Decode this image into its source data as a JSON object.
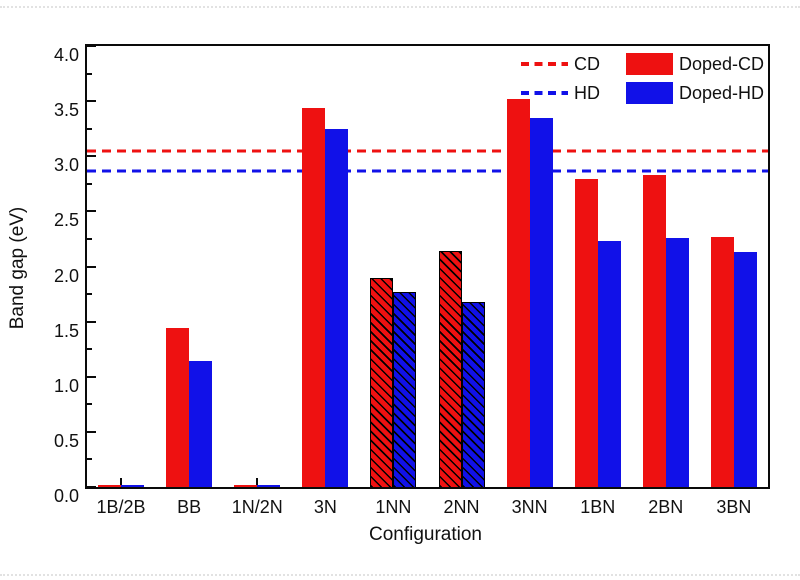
{
  "figure": {
    "y_axis_label": "Band gap (eV)",
    "x_axis_label": "Configuration"
  },
  "legend": {
    "cd_label": "CD",
    "hd_label": "HD",
    "doped_cd_label": "Doped-CD",
    "doped_hd_label": "Doped-HD"
  },
  "colors": {
    "cd_red": "#ee1111",
    "hd_blue": "#1111e8",
    "hatch": "#000000",
    "axis": "#0a0a0a"
  },
  "chart_data": {
    "type": "bar",
    "title": "",
    "xlabel": "Configuration",
    "ylabel": "Band gap (eV)",
    "ylim": [
      0.0,
      4.0
    ],
    "ytick_step": 0.5,
    "yminor_step": 0.25,
    "ytick_labels": [
      "0.0",
      "0.5",
      "1.0",
      "1.5",
      "2.0",
      "2.5",
      "3.0",
      "3.5",
      "4.0"
    ],
    "grid": false,
    "legend_position": "top-right-inside",
    "categories": [
      "1B/2B",
      "BB",
      "1N/2N",
      "3N",
      "1NN",
      "2NN",
      "3NN",
      "1BN",
      "2BN",
      "3BN"
    ],
    "series": [
      {
        "name": "Doped-CD",
        "color": "#ee1111",
        "values": [
          0.02,
          1.44,
          0.02,
          3.44,
          1.89,
          2.13,
          3.52,
          2.79,
          2.83,
          2.27
        ]
      },
      {
        "name": "Doped-HD",
        "color": "#1111e8",
        "values": [
          0.02,
          1.14,
          0.02,
          3.25,
          1.76,
          1.67,
          3.35,
          2.23,
          2.26,
          2.13
        ]
      }
    ],
    "hatched_categories": [
      "1NN",
      "2NN"
    ],
    "reference_lines": [
      {
        "name": "CD",
        "value": 3.05,
        "color": "#ee1111",
        "style": "dashed"
      },
      {
        "name": "HD",
        "value": 2.87,
        "color": "#1111e8",
        "style": "dashed"
      }
    ]
  }
}
